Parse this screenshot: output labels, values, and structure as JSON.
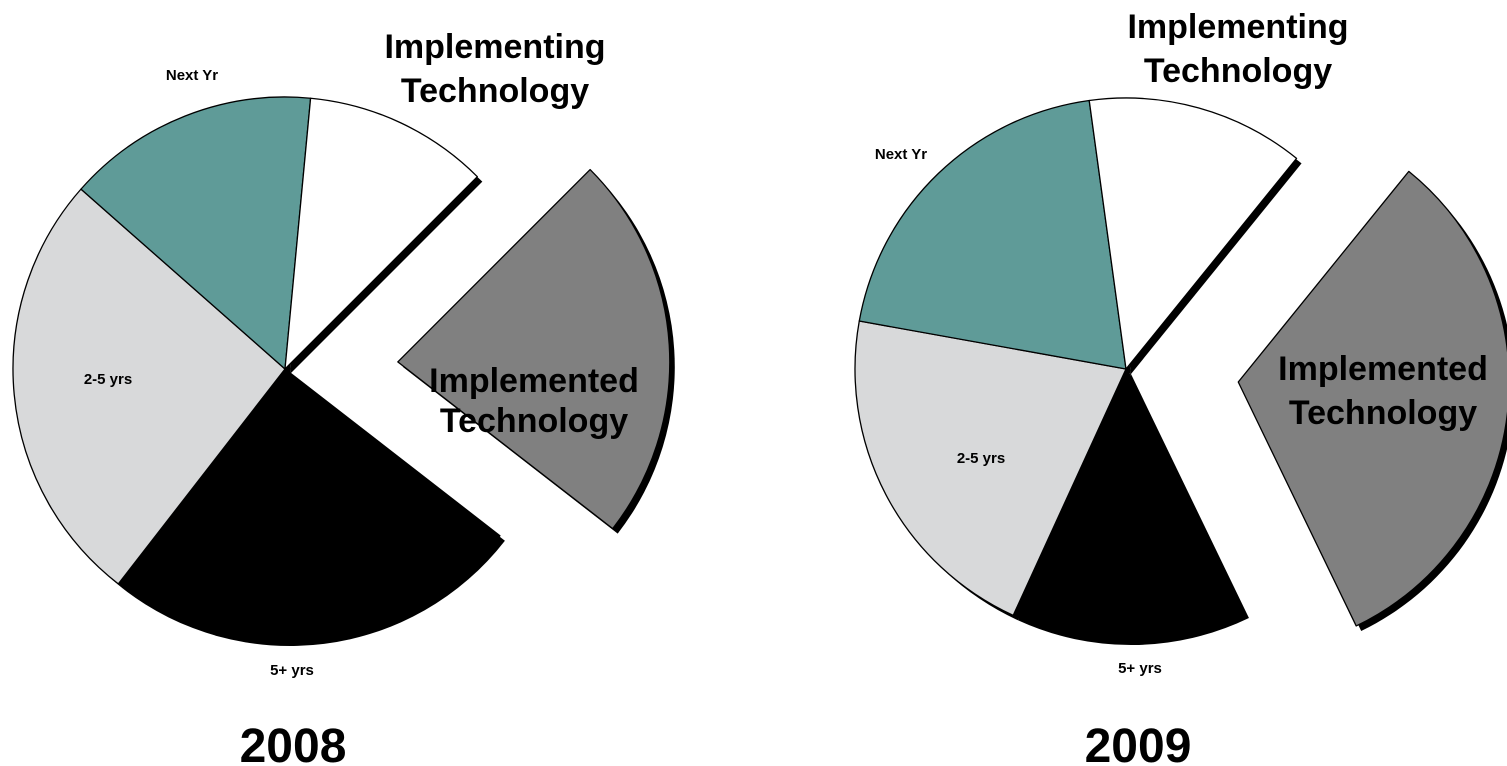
{
  "chart_data": [
    {
      "type": "pie",
      "title": "2008",
      "slices": [
        {
          "label": "Implemented Technology",
          "value": 23,
          "color": "#808080",
          "exploded": true
        },
        {
          "label": "5+ yrs",
          "value": 25,
          "color": "#000000",
          "exploded": false
        },
        {
          "label": "2-5 yrs",
          "value": 26,
          "color": "#d8d9da",
          "exploded": false
        },
        {
          "label": "Next Yr",
          "value": 15,
          "color": "#5f9b98",
          "exploded": false
        },
        {
          "label": "Implementing Technology",
          "value": 11,
          "color": "#ffffff",
          "exploded": false
        }
      ]
    },
    {
      "type": "pie",
      "title": "2009",
      "slices": [
        {
          "label": "Implemented Technology",
          "value": 32,
          "color": "#808080",
          "exploded": true
        },
        {
          "label": "5+ yrs",
          "value": 14,
          "color": "#000000",
          "exploded": false
        },
        {
          "label": "2-5 yrs",
          "value": 21,
          "color": "#d8d9da",
          "exploded": false
        },
        {
          "label": "Next Yr",
          "value": 20,
          "color": "#5f9b98",
          "exploded": false
        },
        {
          "label": "Implementing Technology",
          "value": 13,
          "color": "#ffffff",
          "exploded": false
        }
      ]
    }
  ]
}
